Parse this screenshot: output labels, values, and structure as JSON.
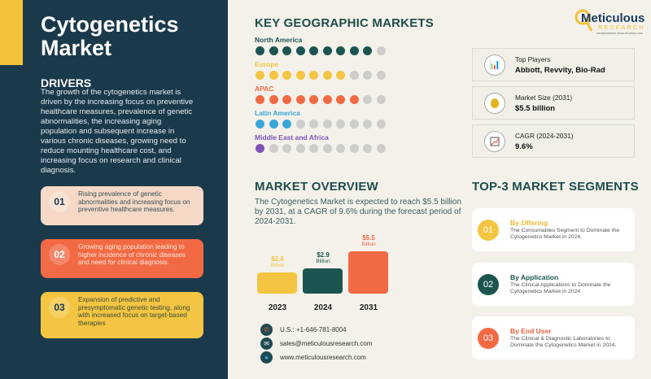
{
  "title": "Cytogenetics Market",
  "drivers": {
    "heading": "DRIVERS",
    "text": "The growth of the cytogenetics market is driven by the increasing focus on preventive healthcare measures, prevalence of genetic abnormalities, the increasing aging population and subsequent increase in various chronic diseases, growing need to reduce mounting healthcare cost, and increasing focus on research and clinical diagnosis.",
    "items": [
      {
        "num": "01",
        "text": "Rising prevalence of genetic abnormalities and increasing focus on preventive healthcare measures.",
        "color": "#f5d9c6"
      },
      {
        "num": "02",
        "text": "Growing aging population leading to higher incidence of chronic diseases and need for clinical diagnosis.",
        "color": "#f26a43"
      },
      {
        "num": "03",
        "text": "Expansion of predictive and presymptomatic genetic testing, along with increased focus on target-based therapies",
        "color": "#f4c542"
      }
    ]
  },
  "geo": {
    "heading": "KEY GEOGRAPHIC MARKETS",
    "regions": [
      {
        "name": "North America",
        "filled": 9,
        "total": 10,
        "color": "#1c5550"
      },
      {
        "name": "Europe",
        "filled": 7,
        "total": 10,
        "color": "#f4c542"
      },
      {
        "name": "APAC",
        "filled": 8,
        "total": 10,
        "color": "#f26a43"
      },
      {
        "name": "Latin America",
        "filled": 3,
        "total": 10,
        "color": "#3aa6d8"
      },
      {
        "name": "Middle East and Africa",
        "filled": 1,
        "total": 10,
        "color": "#7e52b8"
      }
    ]
  },
  "logo": {
    "name": "Meticulous",
    "sub": "RESEARCH",
    "tagline": "TRANSFORMING INSIGHTS SINCE 2010"
  },
  "info": [
    {
      "label": "Top Players",
      "value": "Abbott, Revvity, Bio-Rad",
      "icon": "bar-chart-icon"
    },
    {
      "label": "Market Size (2031)",
      "value": "$5.5 billion",
      "icon": "money-bag-icon"
    },
    {
      "label": "CAGR (2024-2031)",
      "value": "9.6%",
      "icon": "growth-chart-icon"
    }
  ],
  "overview": {
    "heading": "MARKET OVERVIEW",
    "text": "The Cytogenetics Market is expected to reach $5.5 billion by 2031, at a CAGR of 9.6% during the forecast period of 2024-2031.",
    "chart_data": {
      "type": "bar",
      "categories": [
        "2023",
        "2024",
        "2031"
      ],
      "values": [
        2.6,
        2.9,
        5.5
      ],
      "labels": [
        "$2.6",
        "$2.9",
        "$5.5"
      ],
      "unit": "Billion",
      "colors": [
        "#f4c542",
        "#1c5550",
        "#f26a43"
      ]
    }
  },
  "contact": {
    "phone": "U.S.: +1-646-781-8004",
    "email": "sales@meticulousresearch.com",
    "web": "www.meticulousresearch.com"
  },
  "segments": {
    "heading": "TOP-3 MARKET SEGMENTS",
    "items": [
      {
        "num": "01",
        "title": "By Offering",
        "text": "The Consumables Segment to Dominate the Cytogenetics Market in 2024.",
        "color": "#f4c542"
      },
      {
        "num": "02",
        "title": "By Application",
        "text": "The Clinical Applications to Dominate the Cytogenetics Market in 2024.",
        "color": "#1c5550"
      },
      {
        "num": "03",
        "title": "By End User",
        "text": "The Clinical & Diagnostic Laboratories to Dominate the Cytogenetics Market in 2024.",
        "color": "#f26a43"
      }
    ]
  }
}
